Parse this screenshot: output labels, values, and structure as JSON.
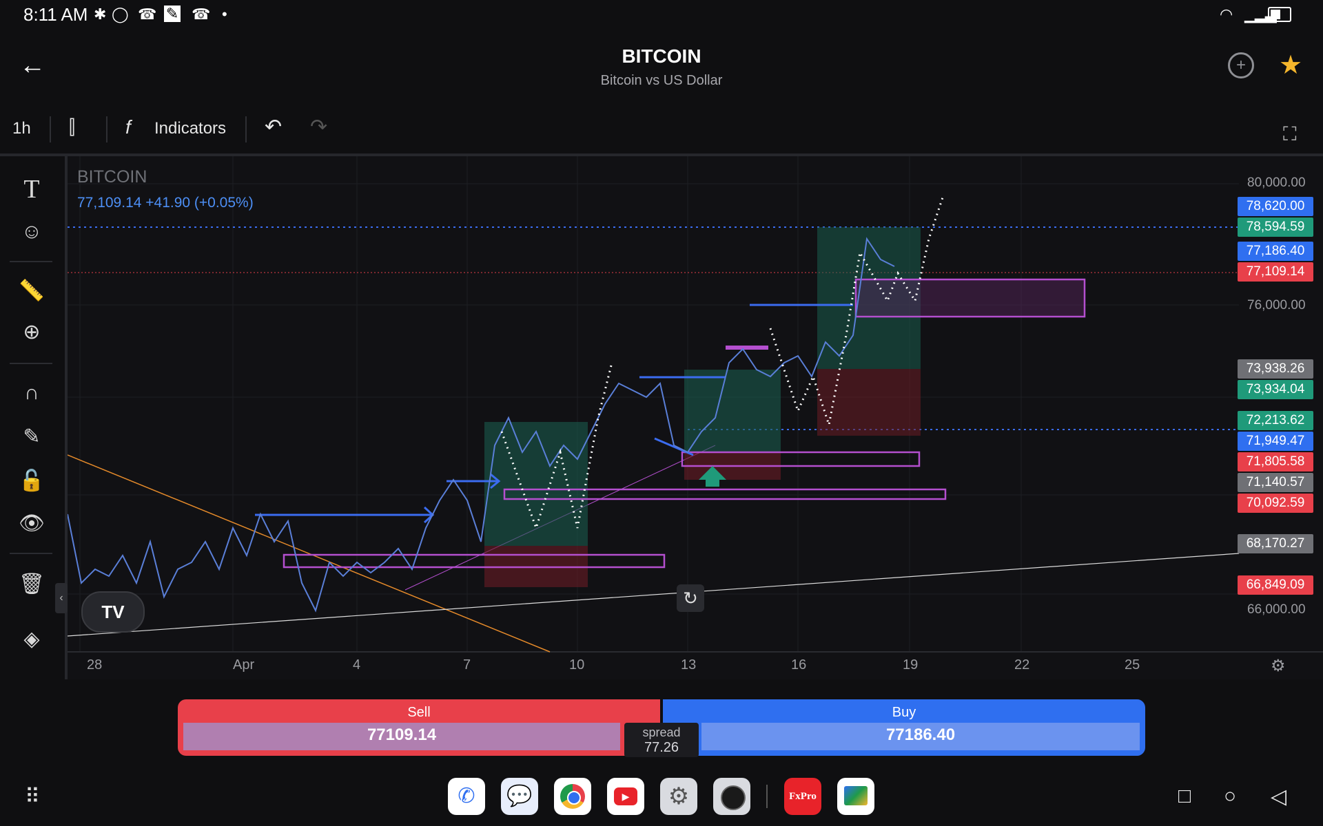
{
  "status": {
    "time": "8:11 AM",
    "icons": [
      "bluetooth-icon",
      "whatsapp-icon",
      "missed-call-icon",
      "app-icon",
      "missed-call-icon",
      "dot-icon"
    ]
  },
  "header": {
    "title": "BITCOIN",
    "subtitle": "Bitcoin vs US Dollar"
  },
  "toolbar": {
    "interval": "1h",
    "indicators_label": "Indicators"
  },
  "symbol": {
    "name": "BITCOIN",
    "price_line": "77,109.14  +41.90 (+0.05%)"
  },
  "price_axis": {
    "ticks": [
      "80,000.00",
      "76,000.00",
      "66,000.00"
    ]
  },
  "badges": [
    {
      "value": "78,620.00",
      "color": "#2f6ff0"
    },
    {
      "value": "78,594.59",
      "color": "#1f9a7a"
    },
    {
      "value": "77,186.40",
      "color": "#2f6ff0"
    },
    {
      "value": "77,109.14",
      "color": "#e8404a"
    },
    {
      "value": "73,938.26",
      "color": "#6f7075"
    },
    {
      "value": "73,934.04",
      "color": "#1f9a7a"
    },
    {
      "value": "72,213.62",
      "color": "#1f9a7a"
    },
    {
      "value": "71,949.47",
      "color": "#2f6ff0"
    },
    {
      "value": "71,805.58",
      "color": "#e8404a"
    },
    {
      "value": "71,140.57",
      "color": "#6f7075"
    },
    {
      "value": "70,092.59",
      "color": "#e8404a"
    },
    {
      "value": "68,170.27",
      "color": "#6f7075"
    },
    {
      "value": "66,849.09",
      "color": "#e8404a"
    }
  ],
  "time_axis": {
    "ticks": [
      "28",
      "Apr",
      "4",
      "7",
      "10",
      "13",
      "16",
      "19",
      "22",
      "25"
    ]
  },
  "trade": {
    "sell_label": "Sell",
    "sell_price": "77109.14",
    "buy_label": "Buy",
    "buy_price": "77186.40",
    "spread_label": "spread",
    "spread_value": "77.26"
  },
  "dock": {
    "apps": [
      "phone-app",
      "messages-app",
      "chrome-app",
      "youtube-app",
      "settings-app",
      "camera-app",
      "fxpro-app",
      "gallery-app"
    ],
    "fxpro_label": "FxPro"
  }
}
